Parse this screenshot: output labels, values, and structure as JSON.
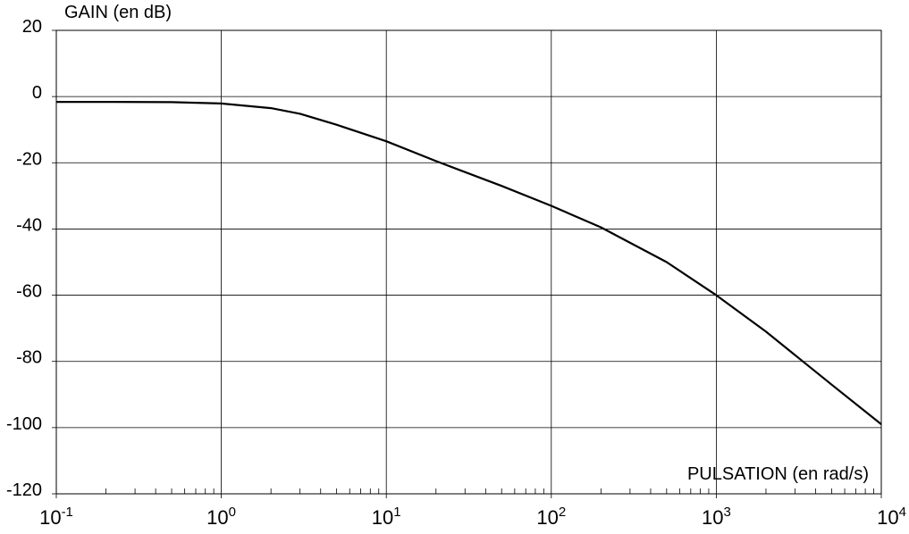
{
  "chart_data": {
    "type": "line",
    "ylabel": "GAIN (en dB)",
    "xlabel": "PULSATION (en rad/s)",
    "x_scale": "log",
    "xlim": [
      0.1,
      10000
    ],
    "ylim": [
      -120,
      20
    ],
    "grid": true,
    "y_ticks": [
      20,
      0,
      -20,
      -40,
      -60,
      -80,
      -100,
      -120
    ],
    "x_ticks": [
      {
        "value": 0.1,
        "base": "10",
        "exp": "-1"
      },
      {
        "value": 1,
        "base": "10",
        "exp": "0"
      },
      {
        "value": 10,
        "base": "10",
        "exp": "1"
      },
      {
        "value": 100,
        "base": "10",
        "exp": "2"
      },
      {
        "value": 1000,
        "base": "10",
        "exp": "3"
      },
      {
        "value": 10000,
        "base": "10",
        "exp": "4"
      }
    ],
    "series": [
      {
        "color": "#000000",
        "x": [
          0.1,
          0.2,
          0.5,
          1,
          2,
          3,
          5,
          10,
          20,
          50,
          100,
          200,
          500,
          1000,
          2000,
          5000,
          10000
        ],
        "y": [
          -1.6,
          -1.6,
          -1.7,
          -2.1,
          -3.5,
          -5.2,
          -8.5,
          -13.5,
          -19.5,
          -27,
          -33,
          -39.5,
          -50,
          -60,
          -71,
          -87,
          -99
        ]
      }
    ]
  }
}
